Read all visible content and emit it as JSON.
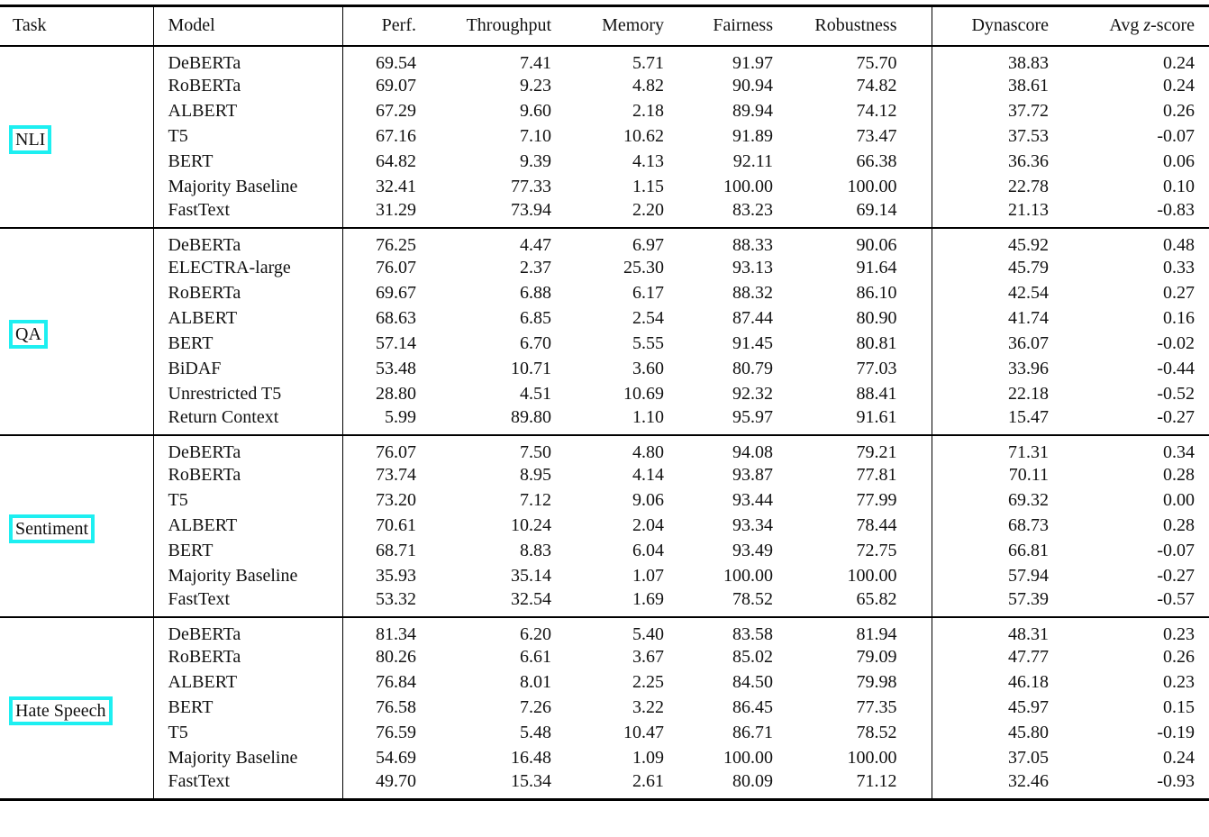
{
  "table": {
    "columns": [
      {
        "label": "Task"
      },
      {
        "label": "Model"
      },
      {
        "label": "Perf."
      },
      {
        "label": "Throughput"
      },
      {
        "label": "Memory"
      },
      {
        "label": "Fairness"
      },
      {
        "label": "Robustness"
      },
      {
        "label": "Dynascore"
      },
      {
        "prefix": "Avg ",
        "italic": "z",
        "suffix": "-score"
      }
    ],
    "groups": [
      {
        "task": "NLI",
        "rows": [
          [
            "DeBERTa",
            "69.54",
            "7.41",
            "5.71",
            "91.97",
            "75.70",
            "38.83",
            "0.24"
          ],
          [
            "RoBERTa",
            "69.07",
            "9.23",
            "4.82",
            "90.94",
            "74.82",
            "38.61",
            "0.24"
          ],
          [
            "ALBERT",
            "67.29",
            "9.60",
            "2.18",
            "89.94",
            "74.12",
            "37.72",
            "0.26"
          ],
          [
            "T5",
            "67.16",
            "7.10",
            "10.62",
            "91.89",
            "73.47",
            "37.53",
            "-0.07"
          ],
          [
            "BERT",
            "64.82",
            "9.39",
            "4.13",
            "92.11",
            "66.38",
            "36.36",
            "0.06"
          ],
          [
            "Majority Baseline",
            "32.41",
            "77.33",
            "1.15",
            "100.00",
            "100.00",
            "22.78",
            "0.10"
          ],
          [
            "FastText",
            "31.29",
            "73.94",
            "2.20",
            "83.23",
            "69.14",
            "21.13",
            "-0.83"
          ]
        ]
      },
      {
        "task": "QA",
        "rows": [
          [
            "DeBERTa",
            "76.25",
            "4.47",
            "6.97",
            "88.33",
            "90.06",
            "45.92",
            "0.48"
          ],
          [
            "ELECTRA-large",
            "76.07",
            "2.37",
            "25.30",
            "93.13",
            "91.64",
            "45.79",
            "0.33"
          ],
          [
            "RoBERTa",
            "69.67",
            "6.88",
            "6.17",
            "88.32",
            "86.10",
            "42.54",
            "0.27"
          ],
          [
            "ALBERT",
            "68.63",
            "6.85",
            "2.54",
            "87.44",
            "80.90",
            "41.74",
            "0.16"
          ],
          [
            "BERT",
            "57.14",
            "6.70",
            "5.55",
            "91.45",
            "80.81",
            "36.07",
            "-0.02"
          ],
          [
            "BiDAF",
            "53.48",
            "10.71",
            "3.60",
            "80.79",
            "77.03",
            "33.96",
            "-0.44"
          ],
          [
            "Unrestricted T5",
            "28.80",
            "4.51",
            "10.69",
            "92.32",
            "88.41",
            "22.18",
            "-0.52"
          ],
          [
            "Return Context",
            "5.99",
            "89.80",
            "1.10",
            "95.97",
            "91.61",
            "15.47",
            "-0.27"
          ]
        ]
      },
      {
        "task": "Sentiment",
        "rows": [
          [
            "DeBERTa",
            "76.07",
            "7.50",
            "4.80",
            "94.08",
            "79.21",
            "71.31",
            "0.34"
          ],
          [
            "RoBERTa",
            "73.74",
            "8.95",
            "4.14",
            "93.87",
            "77.81",
            "70.11",
            "0.28"
          ],
          [
            "T5",
            "73.20",
            "7.12",
            "9.06",
            "93.44",
            "77.99",
            "69.32",
            "0.00"
          ],
          [
            "ALBERT",
            "70.61",
            "10.24",
            "2.04",
            "93.34",
            "78.44",
            "68.73",
            "0.28"
          ],
          [
            "BERT",
            "68.71",
            "8.83",
            "6.04",
            "93.49",
            "72.75",
            "66.81",
            "-0.07"
          ],
          [
            "Majority Baseline",
            "35.93",
            "35.14",
            "1.07",
            "100.00",
            "100.00",
            "57.94",
            "-0.27"
          ],
          [
            "FastText",
            "53.32",
            "32.54",
            "1.69",
            "78.52",
            "65.82",
            "57.39",
            "-0.57"
          ]
        ]
      },
      {
        "task": "Hate Speech",
        "rows": [
          [
            "DeBERTa",
            "81.34",
            "6.20",
            "5.40",
            "83.58",
            "81.94",
            "48.31",
            "0.23"
          ],
          [
            "RoBERTa",
            "80.26",
            "6.61",
            "3.67",
            "85.02",
            "79.09",
            "47.77",
            "0.26"
          ],
          [
            "ALBERT",
            "76.84",
            "8.01",
            "2.25",
            "84.50",
            "79.98",
            "46.18",
            "0.23"
          ],
          [
            "BERT",
            "76.58",
            "7.26",
            "3.22",
            "86.45",
            "77.35",
            "45.97",
            "0.15"
          ],
          [
            "T5",
            "76.59",
            "5.48",
            "10.47",
            "86.71",
            "78.52",
            "45.80",
            "-0.19"
          ],
          [
            "Majority Baseline",
            "54.69",
            "16.48",
            "1.09",
            "100.00",
            "100.00",
            "37.05",
            "0.24"
          ],
          [
            "FastText",
            "49.70",
            "15.34",
            "2.61",
            "80.09",
            "71.12",
            "32.46",
            "-0.93"
          ]
        ]
      }
    ]
  },
  "annotation": {
    "highlight_color": "#1deff1",
    "highlighted_labels": [
      "NLI",
      "QA",
      "Sentiment",
      "Hate Speech"
    ]
  }
}
